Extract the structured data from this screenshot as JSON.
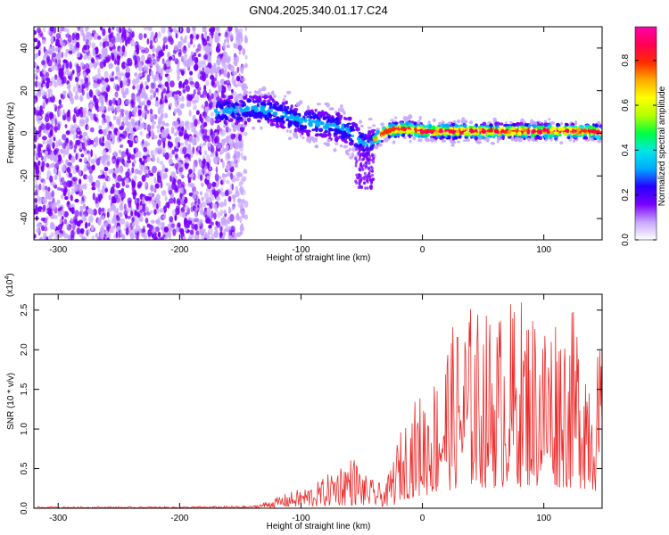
{
  "title": "GN04.2025.340.01.17.C24",
  "chart_data": [
    {
      "type": "heatmap",
      "name": "spectrogram",
      "xlabel": "Height of straight line (km)",
      "ylabel": "Frequency (Hz)",
      "xlim": [
        -320,
        148
      ],
      "ylim": [
        -50,
        50
      ],
      "xticks": [
        -300,
        -200,
        -100,
        0,
        100
      ],
      "xticklabels": [
        "-300",
        "-200",
        "-100",
        "0",
        "100"
      ],
      "yticks": [
        -40,
        -20,
        0,
        20,
        40
      ],
      "yticklabels": [
        "-40",
        "-20",
        "0",
        "20",
        "40"
      ],
      "noise_region_x": [
        -320,
        -145
      ],
      "trace": {
        "x": [
          -170,
          -150,
          -140,
          -130,
          -120,
          -110,
          -100,
          -90,
          -80,
          -70,
          -60,
          -50,
          -45,
          -40,
          -35,
          -30,
          -20,
          -10,
          0,
          20,
          40,
          60,
          80,
          100,
          120,
          140,
          148
        ],
        "frequency_hz": [
          10,
          11,
          12,
          11,
          10,
          8,
          6,
          5,
          4,
          3,
          1,
          -4,
          -6,
          -4,
          -1,
          1,
          2,
          2,
          1,
          1,
          1,
          1,
          1,
          1,
          1,
          1,
          0
        ]
      },
      "colorbar": {
        "label": "Normalized spectral amplitude",
        "range": [
          0,
          0.95
        ],
        "ticks": [
          0.0,
          0.2,
          0.4,
          0.6,
          0.8
        ],
        "ticklabels": [
          "0.0",
          "0.2",
          "0.4",
          "0.6",
          "0.8"
        ],
        "colors": [
          "#ffffff",
          "#c8a6ff",
          "#7a00ff",
          "#2600ff",
          "#00aaff",
          "#00e6e6",
          "#00ff40",
          "#b4ff00",
          "#ffff00",
          "#ffaa00",
          "#ff2a00",
          "#ff0055",
          "#ff00aa"
        ]
      }
    },
    {
      "type": "line",
      "name": "snr",
      "xlabel": "Height of straight line (km)",
      "ylabel": "SNR (10 * v/v)",
      "scale_label": "(x10",
      "scale_exponent": "4",
      "scale_close": ")",
      "xlim": [
        -320,
        148
      ],
      "ylim": [
        0,
        2.7
      ],
      "xticks": [
        -300,
        -200,
        -100,
        0,
        100
      ],
      "xticklabels": [
        "-300",
        "-200",
        "-100",
        "0",
        "100"
      ],
      "yticks": [
        0.0,
        0.5,
        1.0,
        1.5,
        2.0,
        2.5
      ],
      "yticklabels": [
        "0.0",
        "0.5",
        "1.0",
        "1.5",
        "2.0",
        "2.5"
      ],
      "series": [
        {
          "name": "SNR",
          "color": "#ee2a2a",
          "envelope_x": [
            -320,
            -200,
            -140,
            -130,
            -120,
            -110,
            -100,
            -90,
            -80,
            -70,
            -60,
            -55,
            -50,
            -40,
            -30,
            -25,
            -20,
            -10,
            0,
            10,
            20,
            30,
            40,
            50,
            60,
            70,
            80,
            90,
            100,
            110,
            120,
            130,
            140,
            148
          ],
          "envelope_y": [
            0.02,
            0.02,
            0.03,
            0.08,
            0.14,
            0.2,
            0.25,
            0.3,
            0.4,
            0.55,
            0.65,
            0.65,
            0.45,
            0.35,
            0.3,
            0.6,
            0.9,
            1.3,
            1.5,
            1.7,
            2.2,
            2.4,
            2.6,
            2.5,
            2.5,
            2.6,
            2.7,
            2.6,
            2.5,
            2.6,
            2.5,
            2.5,
            2.1,
            2.0
          ]
        }
      ]
    }
  ]
}
